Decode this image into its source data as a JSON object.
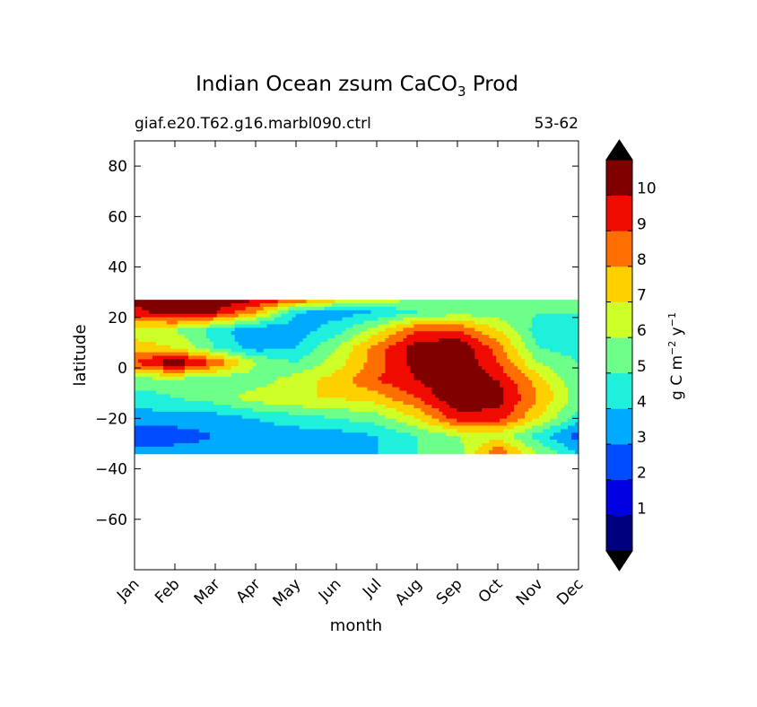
{
  "chart_data": {
    "type": "heatmap",
    "plot_style": "filled-contour",
    "title_main": "Indian Ocean zsum CaCO",
    "title_sub": "3",
    "title_tail": " Prod",
    "subtitle_left": "giaf.e20.T62.g16.marbl090.ctrl",
    "subtitle_right": "53-62",
    "xlabel": "month",
    "ylabel": "latitude",
    "x_categories": [
      "Jan",
      "Feb",
      "Mar",
      "Apr",
      "May",
      "Jun",
      "Jul",
      "Aug",
      "Sep",
      "Oct",
      "Nov",
      "Dec"
    ],
    "ylim": [
      -80,
      90
    ],
    "yticks": [
      80,
      60,
      40,
      20,
      0,
      -20,
      -40,
      -60
    ],
    "ytick_labels": [
      "80",
      "60",
      "40",
      "20",
      "0",
      "−20",
      "−40",
      "−60"
    ],
    "data_lat_range": [
      -34,
      27
    ],
    "field": {
      "lat": [
        27,
        22,
        15,
        8,
        2,
        -5,
        -12,
        -20,
        -27,
        -34
      ],
      "month_index": [
        0,
        1,
        2,
        3,
        4,
        5,
        6,
        7,
        8,
        9,
        10,
        11
      ],
      "values": [
        [
          10.5,
          11.0,
          10.8,
          10.2,
          9.0,
          7.5,
          6.5,
          6.0,
          6.0,
          6.0,
          6.0,
          6.0
        ],
        [
          9.5,
          10.8,
          10.0,
          8.0,
          4.0,
          3.5,
          4.0,
          5.0,
          5.5,
          5.5,
          5.0,
          5.0
        ],
        [
          6.5,
          6.0,
          4.5,
          3.0,
          3.5,
          4.5,
          6.5,
          9.0,
          9.0,
          7.0,
          4.5,
          4.0
        ],
        [
          7.5,
          7.0,
          5.0,
          3.5,
          4.0,
          6.0,
          8.5,
          10.5,
          11.0,
          8.5,
          5.0,
          4.5
        ],
        [
          9.0,
          11.0,
          9.0,
          6.0,
          5.0,
          6.5,
          8.5,
          10.5,
          11.0,
          9.0,
          6.0,
          5.0
        ],
        [
          5.5,
          5.5,
          5.0,
          5.5,
          6.5,
          7.5,
          9.0,
          10.0,
          11.0,
          10.0,
          7.5,
          5.0
        ],
        [
          4.5,
          5.0,
          5.5,
          6.5,
          7.0,
          7.0,
          7.5,
          9.0,
          11.0,
          10.5,
          8.0,
          5.5
        ],
        [
          3.5,
          3.5,
          3.5,
          4.0,
          4.5,
          5.0,
          5.5,
          7.0,
          9.5,
          9.5,
          7.0,
          4.5
        ],
        [
          2.0,
          2.5,
          3.0,
          3.5,
          3.5,
          3.5,
          4.0,
          5.0,
          6.0,
          6.5,
          4.5,
          2.5
        ],
        [
          3.5,
          3.5,
          3.5,
          3.5,
          3.5,
          3.0,
          4.0,
          5.0,
          5.5,
          9.0,
          6.0,
          4.0
        ]
      ]
    },
    "colorbar": {
      "label": "g C m",
      "label_sup1": "−2",
      "label_mid": " y",
      "label_sup2": "−1",
      "levels": [
        0,
        1,
        2,
        3,
        4,
        5,
        6,
        7,
        8,
        9,
        10,
        11
      ],
      "tick_labels": [
        "1",
        "2",
        "3",
        "4",
        "5",
        "6",
        "7",
        "8",
        "9",
        "10"
      ],
      "colors": [
        "#00007f",
        "#0000e0",
        "#004cff",
        "#00aaff",
        "#1ff0dc",
        "#6dff8a",
        "#cfff28",
        "#ffd000",
        "#ff6e00",
        "#f00b00",
        "#800000"
      ],
      "under_color": "#000000",
      "over_color": "#000000",
      "extend": "both"
    }
  }
}
